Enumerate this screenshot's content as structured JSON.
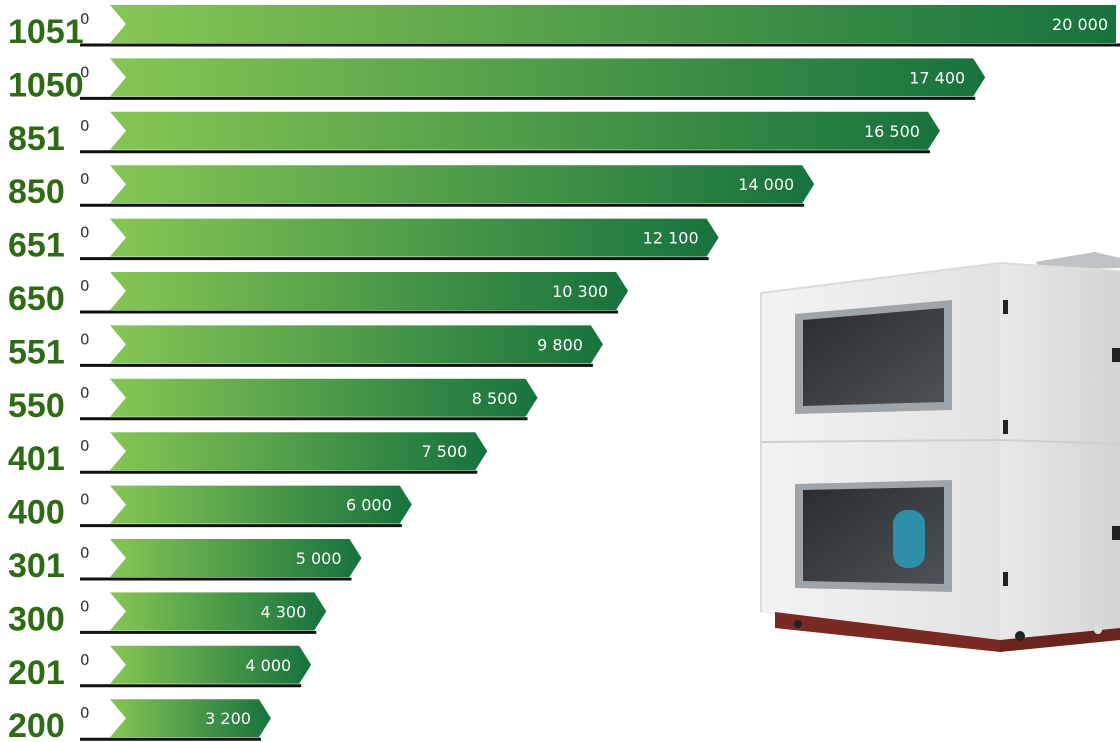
{
  "chart_data": {
    "type": "bar",
    "orientation": "horizontal",
    "title": "",
    "xlabel": "",
    "ylabel": "",
    "xlim": [
      0,
      20000
    ],
    "start_label": "0",
    "categories": [
      "1051",
      "1050",
      "851",
      "850",
      "651",
      "650",
      "551",
      "550",
      "401",
      "400",
      "301",
      "300",
      "201",
      "200"
    ],
    "values": [
      20000,
      17400,
      16500,
      14000,
      12100,
      10300,
      9800,
      8500,
      7500,
      6000,
      5000,
      4300,
      4000,
      3200
    ],
    "value_labels": [
      "20 000",
      "17 400",
      "16 500",
      "14 000",
      "12 100",
      "10 300",
      "9 800",
      "8 500",
      "7 500",
      "6 000",
      "5 000",
      "4 300",
      "4 000",
      "3 200"
    ],
    "colors": {
      "gradient_start": "#86c654",
      "gradient_end": "#17723e",
      "label": "#2e6b14",
      "baseline": "#111111"
    }
  },
  "product_image": {
    "icon": "ventilation-unit-image"
  }
}
